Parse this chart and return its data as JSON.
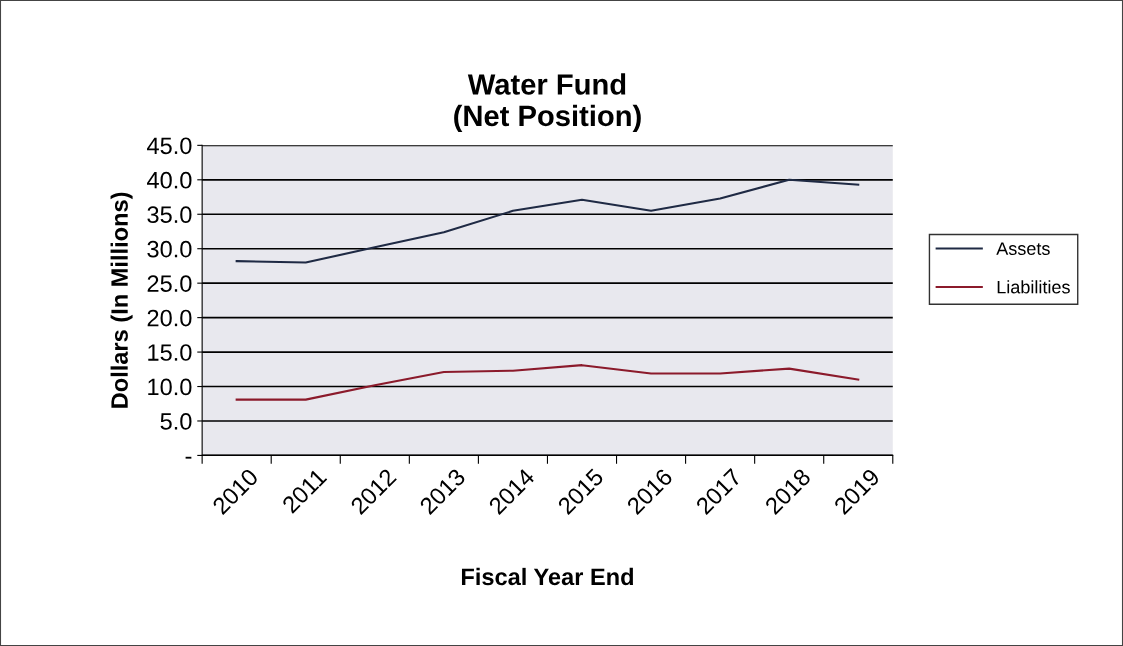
{
  "chart_data": {
    "type": "line",
    "title": "Water Fund\n(Net Position)",
    "xlabel": "Fiscal Year End",
    "ylabel": "Dollars (In Millions)",
    "categories": [
      "2010",
      "2011",
      "2012",
      "2013",
      "2014",
      "2015",
      "2016",
      "2017",
      "2018",
      "2019"
    ],
    "series": [
      {
        "name": "Assets",
        "color": "#1f2a44",
        "values": [
          28.2,
          28.0,
          30.2,
          32.4,
          35.5,
          37.1,
          35.5,
          37.3,
          40.0,
          39.3
        ]
      },
      {
        "name": "Liabilities",
        "color": "#8b1a2b",
        "values": [
          8.1,
          8.1,
          10.2,
          12.1,
          12.3,
          13.1,
          11.9,
          11.9,
          12.6,
          11.0
        ]
      }
    ],
    "ylim": [
      0,
      45
    ],
    "yticks": [
      {
        "value": 0,
        "label": "-"
      },
      {
        "value": 5,
        "label": "5.0"
      },
      {
        "value": 10,
        "label": "10.0"
      },
      {
        "value": 15,
        "label": "15.0"
      },
      {
        "value": 20,
        "label": "20.0"
      },
      {
        "value": 25,
        "label": "25.0"
      },
      {
        "value": 30,
        "label": "30.0"
      },
      {
        "value": 35,
        "label": "35.0"
      },
      {
        "value": 40,
        "label": "40.0"
      },
      {
        "value": 45,
        "label": "45.0"
      }
    ],
    "grid": "y",
    "legend": "right",
    "marker": "none",
    "line_style": "solid"
  }
}
